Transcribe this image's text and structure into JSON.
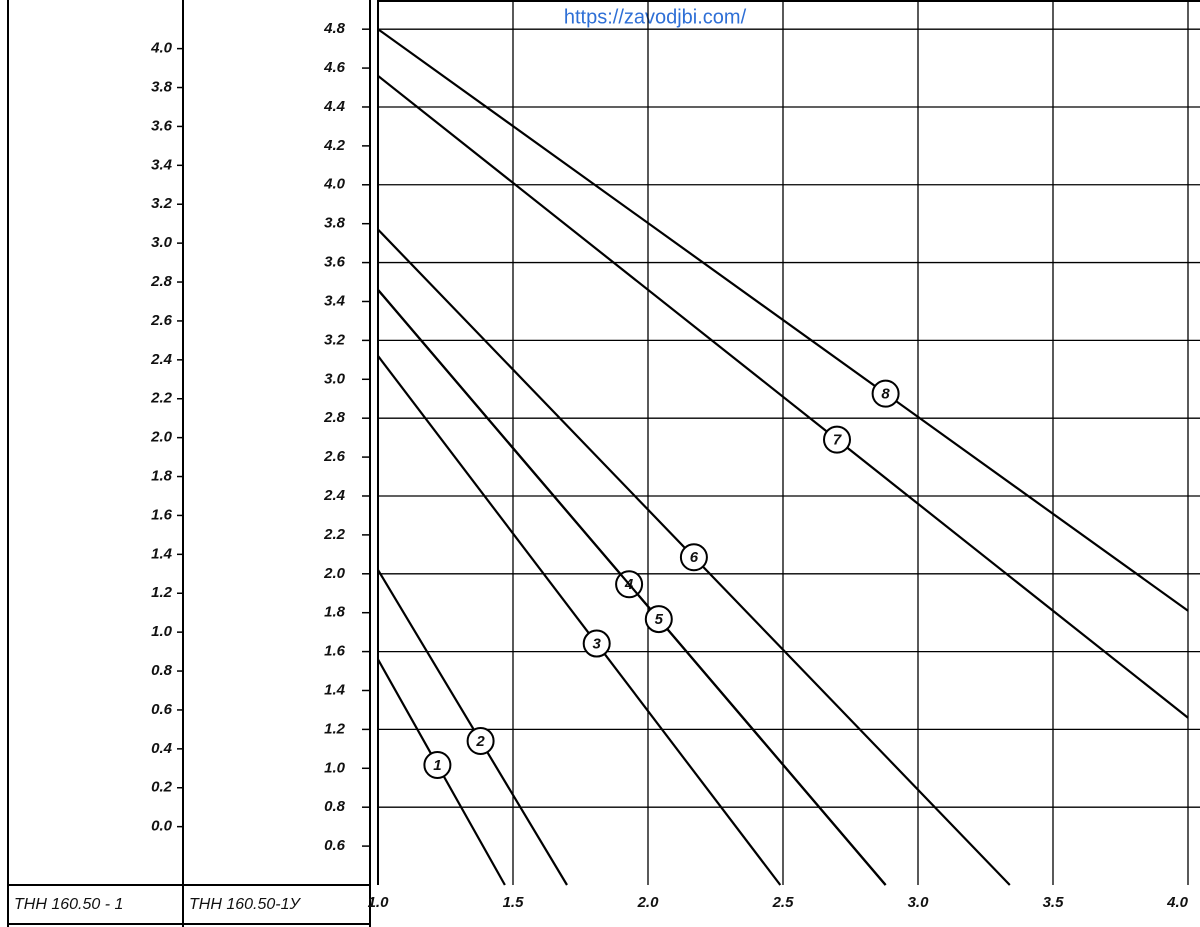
{
  "url": "https://zavodjbi.com/",
  "chart_data": {
    "type": "line",
    "xlim": [
      1.0,
      4.0
    ],
    "xticks": [
      {
        "value": 1.0,
        "label": "1.0"
      },
      1.5,
      {
        "value": 2.0,
        "label": "2.0"
      },
      2.5,
      {
        "value": 3.0,
        "label": "3.0"
      },
      3.5,
      {
        "value": 4.0,
        "label": "4.0"
      }
    ],
    "ylim": [
      0.4,
      4.95
    ],
    "yticks": [
      0.6,
      0.8,
      {
        "value": 1.0,
        "label": "1.0"
      },
      1.2,
      1.4,
      1.6,
      1.8,
      {
        "value": 2.0,
        "label": "2.0"
      },
      2.2,
      2.4,
      2.6,
      2.8,
      {
        "value": 3.0,
        "label": "3.0"
      },
      3.2,
      3.4,
      3.6,
      3.8,
      {
        "value": 4.0,
        "label": "4.0"
      },
      4.2,
      4.4,
      4.6,
      4.8
    ],
    "y_caption": "ТНН 160.50-1У",
    "aux_axis": {
      "caption": "ТНН 160.50 - 1",
      "lim": [
        -0.3,
        4.25
      ],
      "ticks": [
        {
          "value": 0.0,
          "label": "0.0"
        },
        0.2,
        0.4,
        0.6,
        0.8,
        {
          "value": 1.0,
          "label": "1.0"
        },
        1.2,
        1.4,
        1.6,
        1.8,
        {
          "value": 2.0,
          "label": "2.0"
        },
        2.2,
        2.4,
        2.6,
        2.8,
        {
          "value": 3.0,
          "label": "3.0"
        },
        3.2,
        3.4,
        3.6,
        3.8,
        {
          "value": 4.0,
          "label": "4.0"
        }
      ]
    },
    "grid": true,
    "series": [
      {
        "name": "1",
        "color": "#000000",
        "x": [
          1.0,
          1.47
        ],
        "values": [
          1.56,
          0.4
        ],
        "label_x": 1.22
      },
      {
        "name": "2",
        "color": "#000000",
        "x": [
          1.0,
          1.7
        ],
        "values": [
          2.02,
          0.4
        ],
        "label_x": 1.38
      },
      {
        "name": "3",
        "color": "#000000",
        "x": [
          1.0,
          2.49
        ],
        "values": [
          3.12,
          0.4
        ],
        "label_x": 1.81
      },
      {
        "name": "4",
        "color": "#000000",
        "x": [
          1.0,
          2.88
        ],
        "values": [
          3.46,
          0.4
        ],
        "label_x": 1.93
      },
      {
        "name": "5",
        "color": "#000000",
        "x": [
          1.0,
          2.88
        ],
        "values": [
          3.46,
          0.4
        ],
        "label_x": 2.04
      },
      {
        "name": "6",
        "color": "#000000",
        "x": [
          1.0,
          3.34
        ],
        "values": [
          3.77,
          0.4
        ],
        "label_x": 2.17
      },
      {
        "name": "7",
        "color": "#000000",
        "x": [
          1.0,
          4.0
        ],
        "values": [
          4.56,
          1.26
        ],
        "label_x": 2.7
      },
      {
        "name": "8",
        "color": "#000000",
        "x": [
          1.0,
          4.0
        ],
        "values": [
          4.8,
          1.81
        ],
        "label_x": 2.88
      }
    ]
  }
}
